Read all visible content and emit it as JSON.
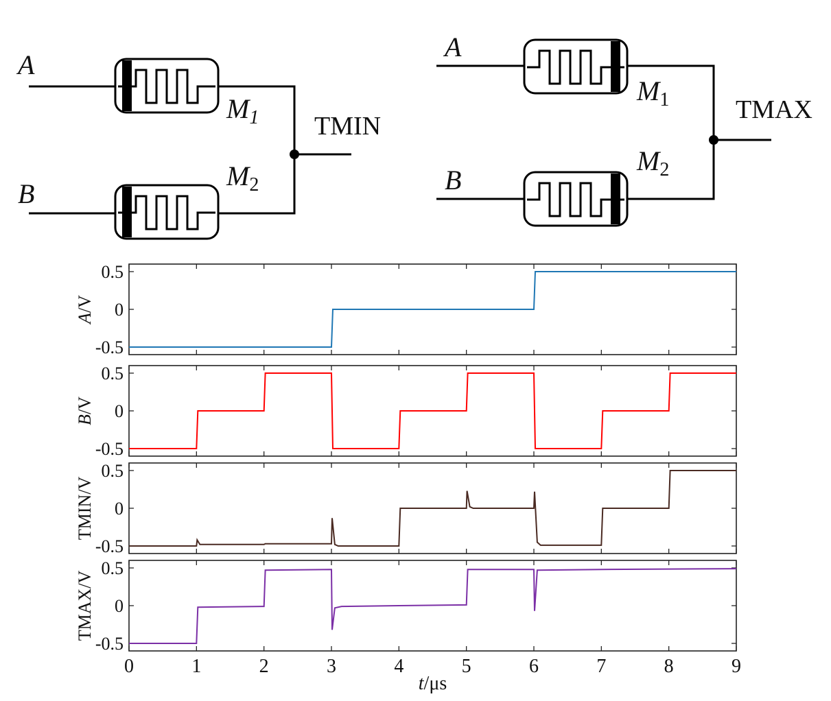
{
  "circuits": [
    {
      "name": "tmin",
      "input_a": "A",
      "input_b": "B",
      "memristor_1": {
        "letter": "M",
        "sub": "1"
      },
      "memristor_2": {
        "letter": "M",
        "sub": "2"
      },
      "output_label": "TMIN"
    },
    {
      "name": "tmax",
      "input_a": "A",
      "input_b": "B",
      "memristor_1": {
        "letter": "M",
        "sub": "1"
      },
      "memristor_2": {
        "letter": "M",
        "sub": "2"
      },
      "output_label": "TMAX"
    }
  ],
  "chart_data": {
    "type": "line",
    "shared_x": {
      "label_var": "t",
      "label_unit": "/μs",
      "ticks": [
        0,
        1,
        2,
        3,
        4,
        5,
        6,
        7,
        8,
        9
      ],
      "xlim": [
        0,
        9
      ]
    },
    "ylim": [
      -0.6,
      0.6
    ],
    "y_tick_values": [
      -0.5,
      0,
      0.5
    ],
    "y_tick_labels": [
      "-0.5",
      "0",
      "0.5"
    ],
    "panels": [
      {
        "name": "A",
        "ylabel_var": "A",
        "ylabel_unit": "/V",
        "color": "#1f77b4",
        "points": [
          [
            0,
            -0.5
          ],
          [
            3,
            -0.5
          ],
          [
            3.02,
            0
          ],
          [
            6,
            0
          ],
          [
            6.02,
            0.5
          ],
          [
            9,
            0.5
          ]
        ]
      },
      {
        "name": "B",
        "ylabel_var": "B",
        "ylabel_unit": "/V",
        "color": "#ff0000",
        "points": [
          [
            0,
            -0.5
          ],
          [
            1,
            -0.5
          ],
          [
            1.02,
            0
          ],
          [
            2,
            0
          ],
          [
            2.02,
            0.5
          ],
          [
            3,
            0.5
          ],
          [
            3.02,
            -0.5
          ],
          [
            4,
            -0.5
          ],
          [
            4.02,
            0
          ],
          [
            5,
            0
          ],
          [
            5.02,
            0.5
          ],
          [
            6,
            0.5
          ],
          [
            6.02,
            -0.5
          ],
          [
            7,
            -0.5
          ],
          [
            7.02,
            0
          ],
          [
            8,
            0
          ],
          [
            8.02,
            0.5
          ],
          [
            9,
            0.5
          ]
        ]
      },
      {
        "name": "TMIN",
        "ylabel_var": "",
        "ylabel_unit": "TMIN/V",
        "color": "#4a2a22",
        "points": [
          [
            0,
            -0.5
          ],
          [
            1,
            -0.5
          ],
          [
            1.01,
            -0.42
          ],
          [
            1.05,
            -0.48
          ],
          [
            2,
            -0.48
          ],
          [
            2.02,
            -0.47
          ],
          [
            3,
            -0.47
          ],
          [
            3.01,
            -0.13
          ],
          [
            3.05,
            -0.48
          ],
          [
            3.1,
            -0.5
          ],
          [
            4,
            -0.5
          ],
          [
            4.02,
            0
          ],
          [
            5,
            0
          ],
          [
            5.01,
            0.23
          ],
          [
            5.05,
            0.02
          ],
          [
            5.1,
            0
          ],
          [
            6,
            0
          ],
          [
            6.01,
            0.22
          ],
          [
            6.05,
            -0.45
          ],
          [
            6.1,
            -0.49
          ],
          [
            7,
            -0.49
          ],
          [
            7.02,
            0
          ],
          [
            8,
            0
          ],
          [
            8.02,
            0.5
          ],
          [
            9,
            0.5
          ]
        ]
      },
      {
        "name": "TMAX",
        "ylabel_var": "",
        "ylabel_unit": "TMAX/V",
        "color": "#7b2fa6",
        "points": [
          [
            0,
            -0.5
          ],
          [
            1,
            -0.5
          ],
          [
            1.02,
            -0.02
          ],
          [
            2,
            -0.01
          ],
          [
            2.02,
            0.47
          ],
          [
            3,
            0.48
          ],
          [
            3.01,
            -0.32
          ],
          [
            3.05,
            -0.03
          ],
          [
            3.15,
            -0.01
          ],
          [
            4,
            0
          ],
          [
            5,
            0.01
          ],
          [
            5.02,
            0.48
          ],
          [
            6,
            0.48
          ],
          [
            6.01,
            -0.07
          ],
          [
            6.05,
            0.47
          ],
          [
            7,
            0.48
          ],
          [
            9,
            0.49
          ]
        ]
      }
    ]
  }
}
